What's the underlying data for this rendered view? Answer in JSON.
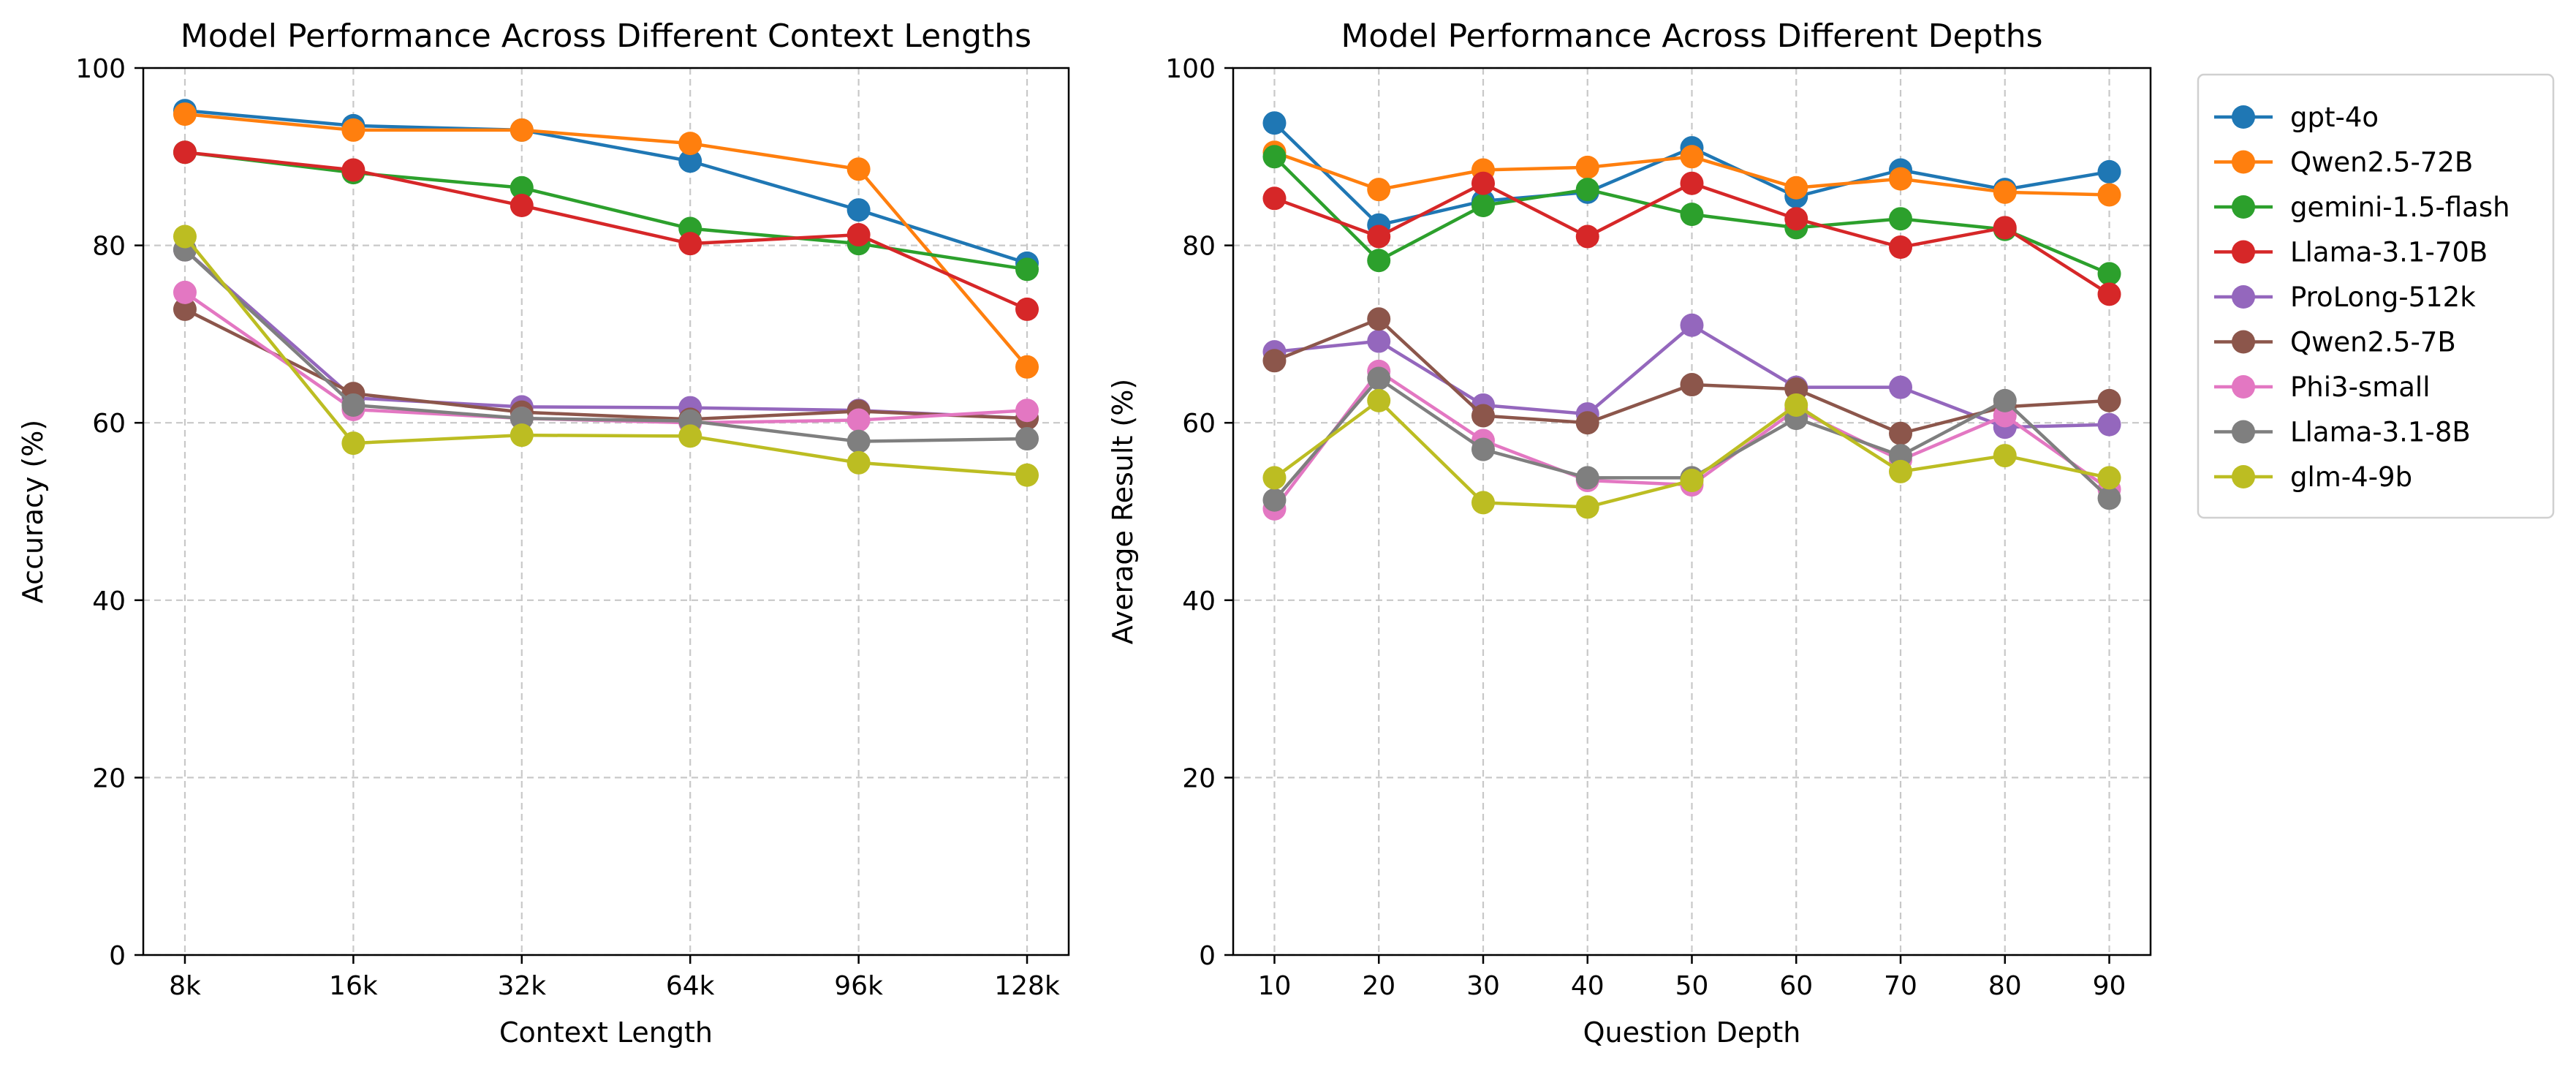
{
  "series_names": [
    "gpt-4o",
    "Qwen2.5-72B",
    "gemini-1.5-flash",
    "Llama-3.1-70B",
    "ProLong-512k",
    "Qwen2.5-7B",
    "Phi3-small",
    "Llama-3.1-8B",
    "glm-4-9b"
  ],
  "series_colors": [
    "#1f77b4",
    "#ff7f0e",
    "#2ca02c",
    "#d62728",
    "#9467bd",
    "#8c564b",
    "#e377c2",
    "#7f7f7f",
    "#bcbd22"
  ],
  "grid_color": "#c8c8c8",
  "legend_placement": "outside right",
  "chart_data": [
    {
      "type": "line",
      "title": "Model Performance Across Different Context Lengths",
      "xlabel": "Context Length",
      "ylabel": "Accuracy (%)",
      "categories": [
        "8k",
        "16k",
        "32k",
        "64k",
        "96k",
        "128k"
      ],
      "ylim": [
        0,
        100
      ],
      "yticks": [
        "0",
        "20",
        "40",
        "60",
        "80",
        "100"
      ],
      "grid": true,
      "series": [
        {
          "name": "gpt-4o",
          "values": [
            95.2,
            93.5,
            93.0,
            89.5,
            84.0,
            78.0
          ]
        },
        {
          "name": "Qwen2.5-72B",
          "values": [
            94.8,
            93.0,
            93.0,
            91.5,
            88.6,
            66.3
          ]
        },
        {
          "name": "gemini-1.5-flash",
          "values": [
            90.5,
            88.2,
            86.5,
            81.9,
            80.2,
            77.3
          ]
        },
        {
          "name": "Llama-3.1-70B",
          "values": [
            90.5,
            88.5,
            84.5,
            80.2,
            81.2,
            72.8
          ]
        },
        {
          "name": "ProLong-512k",
          "values": [
            79.5,
            62.8,
            61.8,
            61.7,
            61.4,
            60.5
          ]
        },
        {
          "name": "Qwen2.5-7B",
          "values": [
            72.8,
            63.3,
            61.2,
            60.4,
            61.3,
            60.5
          ]
        },
        {
          "name": "Phi3-small",
          "values": [
            74.7,
            61.5,
            60.5,
            60.0,
            60.3,
            61.4
          ]
        },
        {
          "name": "Llama-3.1-8B",
          "values": [
            79.5,
            62.0,
            60.5,
            60.2,
            57.9,
            58.2
          ]
        },
        {
          "name": "glm-4-9b",
          "values": [
            81.0,
            57.7,
            58.6,
            58.5,
            55.5,
            54.1
          ]
        }
      ]
    },
    {
      "type": "line",
      "title": "Model Performance Across Different Depths",
      "xlabel": "Question Depth",
      "ylabel": "Average Result (%)",
      "categories": [
        "10",
        "20",
        "30",
        "40",
        "50",
        "60",
        "70",
        "80",
        "90"
      ],
      "ylim": [
        0,
        100
      ],
      "yticks": [
        "0",
        "20",
        "40",
        "60",
        "80",
        "100"
      ],
      "grid": true,
      "series": [
        {
          "name": "gpt-4o",
          "values": [
            93.8,
            82.3,
            85.0,
            86.0,
            91.0,
            85.5,
            88.5,
            86.3,
            88.3
          ]
        },
        {
          "name": "Qwen2.5-72B",
          "values": [
            90.5,
            86.3,
            88.5,
            88.8,
            90.0,
            86.5,
            87.5,
            86.0,
            85.7
          ]
        },
        {
          "name": "gemini-1.5-flash",
          "values": [
            90.0,
            78.3,
            84.5,
            86.3,
            83.5,
            82.0,
            83.0,
            81.8,
            76.8
          ]
        },
        {
          "name": "Llama-3.1-70B",
          "values": [
            85.3,
            81.0,
            87.0,
            81.0,
            87.0,
            83.0,
            79.8,
            82.0,
            74.5
          ]
        },
        {
          "name": "ProLong-512k",
          "values": [
            68.0,
            69.2,
            62.0,
            61.0,
            71.0,
            64.0,
            64.0,
            59.5,
            59.8
          ]
        },
        {
          "name": "Qwen2.5-7B",
          "values": [
            67.0,
            71.7,
            60.8,
            60.0,
            64.3,
            63.8,
            58.8,
            61.8,
            62.5
          ]
        },
        {
          "name": "Phi3-small",
          "values": [
            50.3,
            65.8,
            58.0,
            53.5,
            53.0,
            61.5,
            55.8,
            60.8,
            52.5
          ]
        },
        {
          "name": "Llama-3.1-8B",
          "values": [
            51.3,
            65.0,
            57.0,
            53.8,
            53.8,
            60.5,
            56.3,
            62.5,
            51.5
          ]
        },
        {
          "name": "glm-4-9b",
          "values": [
            53.8,
            62.5,
            51.0,
            50.5,
            53.5,
            62.0,
            54.5,
            56.3,
            53.8
          ]
        }
      ]
    }
  ]
}
